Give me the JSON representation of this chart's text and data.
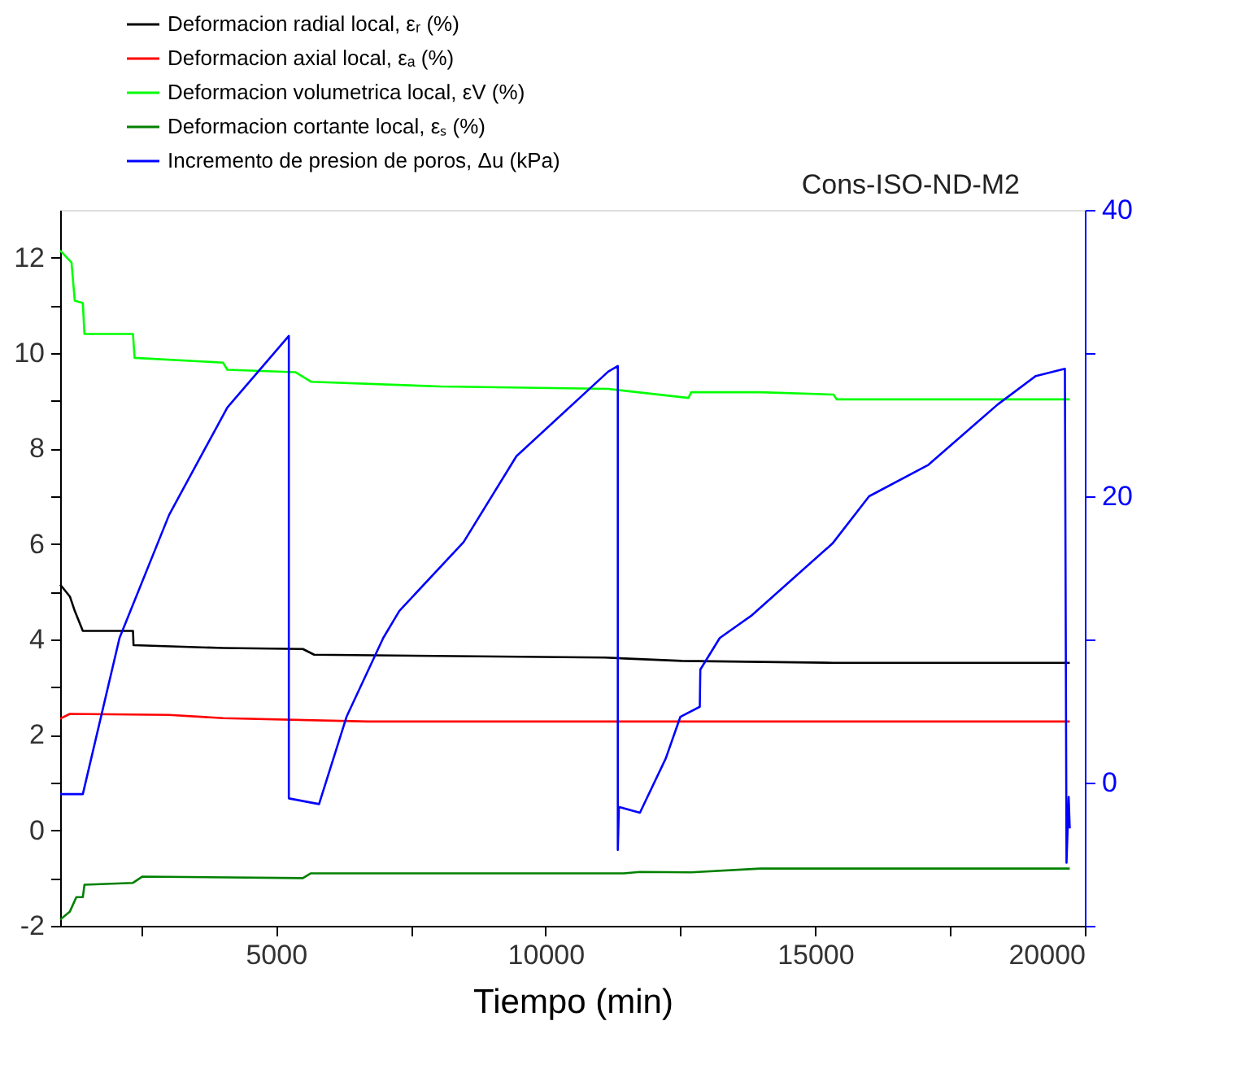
{
  "chart_data": {
    "type": "line",
    "xlabel": "Tiempo (min)",
    "annotations": [
      "Cons-ISO-ND-M2"
    ],
    "xlim": [
      1000,
      20000
    ],
    "xticks": [
      {
        "value": 2500,
        "label": null
      },
      5000,
      {
        "value": 7500,
        "label": null
      },
      10000,
      {
        "value": 12500,
        "label": null
      },
      15000,
      {
        "value": 17500,
        "label": null
      },
      20000
    ],
    "ylim": [
      -2,
      13
    ],
    "yticks": [
      -2,
      {
        "value": -1,
        "label": null
      },
      0,
      {
        "value": 1,
        "label": null
      },
      2,
      {
        "value": 3,
        "label": null
      },
      4,
      {
        "value": 5,
        "label": null
      },
      6,
      {
        "value": 7,
        "label": null
      },
      8,
      {
        "value": 9,
        "label": null
      },
      10,
      {
        "value": 11,
        "label": null
      },
      12
    ],
    "y2lim": [
      -10,
      40
    ],
    "y2ticks": [
      {
        "value": -10,
        "label": null
      },
      0,
      {
        "value": 10,
        "label": null
      },
      20,
      {
        "value": 30,
        "label": null
      },
      40
    ],
    "grid": false,
    "legend": "top left",
    "marker": "none",
    "line_style": "solid",
    "series": [
      {
        "name": "Deformacion radial local, εᵣ (%)",
        "color": "#000000",
        "x": [
          1000,
          1180,
          1270,
          1420,
          2350,
          2360,
          4020,
          5500,
          5710,
          11100,
          12530,
          15340,
          19720
        ],
        "values": [
          5.15,
          4.9,
          4.6,
          4.18,
          4.18,
          3.88,
          3.82,
          3.8,
          3.68,
          3.62,
          3.55,
          3.51,
          3.51
        ]
      },
      {
        "name": "Deformacion axial local, εₐ (%)",
        "color": "#ff0000",
        "x": [
          1000,
          1180,
          3020,
          4020,
          6700,
          12000,
          19720
        ],
        "values": [
          2.34,
          2.44,
          2.42,
          2.35,
          2.28,
          2.28,
          2.28
        ]
      },
      {
        "name": "Deformacion volumetrica local, εV (%)",
        "color": "#00ff00",
        "x": [
          1000,
          1210,
          1270,
          1420,
          1450,
          2350,
          2380,
          4020,
          4100,
          5360,
          5650,
          8040,
          11160,
          12650,
          12700,
          13980,
          15340,
          15400,
          19720
        ],
        "values": [
          12.15,
          11.9,
          11.1,
          11.05,
          10.4,
          10.4,
          9.9,
          9.8,
          9.65,
          9.6,
          9.4,
          9.3,
          9.25,
          9.06,
          9.18,
          9.18,
          9.13,
          9.03,
          9.03
        ]
      },
      {
        "name": "Deformacion cortante local, εₛ (%)",
        "color": "#008000",
        "x": [
          1000,
          1180,
          1300,
          1420,
          1450,
          2350,
          2520,
          5500,
          5650,
          11450,
          11750,
          12700,
          13980,
          19720
        ],
        "values": [
          -1.87,
          -1.7,
          -1.4,
          -1.4,
          -1.14,
          -1.1,
          -0.97,
          -1.0,
          -0.9,
          -0.9,
          -0.87,
          -0.88,
          -0.8,
          -0.8
        ]
      },
      {
        "name": "Incremento de presion de poros, Δu (kPa)",
        "color": "#0000ff",
        "axis": "y2",
        "x": [
          1000,
          1420,
          2100,
          3020,
          4100,
          5240,
          5240,
          5800,
          6310,
          6990,
          7290,
          8480,
          9460,
          11160,
          11340,
          11340,
          11360,
          11750,
          12230,
          12500,
          12860,
          12870,
          13230,
          13830,
          15320,
          16000,
          17100,
          18380,
          19090,
          19630,
          19660,
          19700,
          19720
        ],
        "values": [
          -0.8,
          -0.8,
          10.1,
          18.7,
          26.2,
          31.2,
          -1.1,
          -1.5,
          4.6,
          10.1,
          12.0,
          16.8,
          22.8,
          28.7,
          29.1,
          -4.7,
          -1.7,
          -2.1,
          1.7,
          4.6,
          5.3,
          7.9,
          10.1,
          11.7,
          16.7,
          20.0,
          22.2,
          26.4,
          28.4,
          28.9,
          -5.6,
          -1.0,
          -3.2
        ]
      }
    ]
  }
}
